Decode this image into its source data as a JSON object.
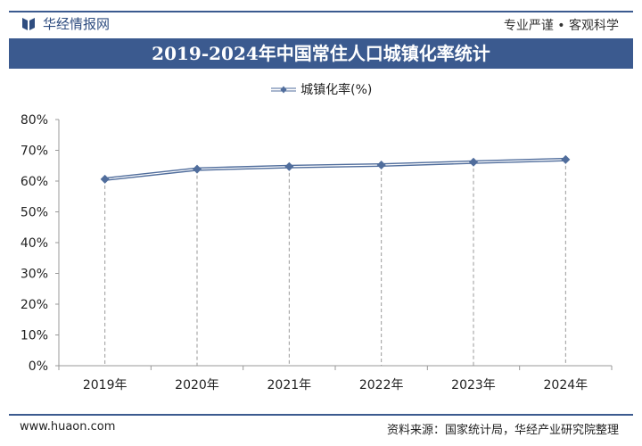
{
  "header": {
    "brand": "华经情报网",
    "slogan": "专业严谨 • 客观科学"
  },
  "colors": {
    "primary": "#3b5a8f",
    "marker": "#506d9c"
  },
  "footer": {
    "url": "www.huaon.com",
    "source": "资料来源：国家统计局，华经产业研究院整理"
  },
  "watermark": "华经产业研究院",
  "chart_data": {
    "type": "line",
    "title": "2019-2024年中国常住人口城镇化率统计",
    "categories": [
      "2019年",
      "2020年",
      "2021年",
      "2022年",
      "2023年",
      "2024年"
    ],
    "series": [
      {
        "name": "城镇化率(%)",
        "values": [
          60.6,
          63.89,
          64.72,
          65.22,
          66.16,
          67.0
        ]
      }
    ],
    "ylim": [
      0,
      80
    ],
    "yticks": [
      "0%",
      "10%",
      "20%",
      "30%",
      "40%",
      "50%",
      "60%",
      "70%",
      "80%"
    ],
    "legend": "top-center",
    "grid": false
  }
}
